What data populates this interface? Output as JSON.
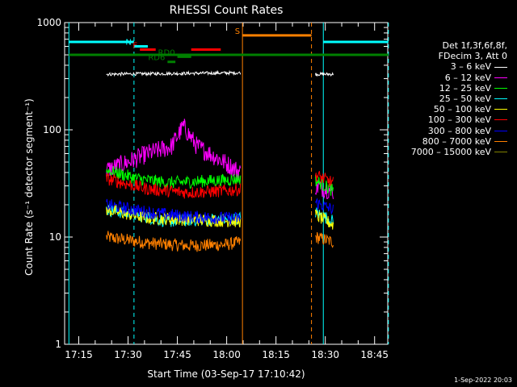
{
  "chart_data": {
    "type": "line",
    "title": "RHESSI Count Rates",
    "xlabel": "Start Time (03-Sep-17 17:10:42)",
    "ylabel": "Count Rate (s⁻¹ detector segment⁻¹)",
    "ylog": true,
    "ylim": [
      1,
      1000
    ],
    "xlim": [
      "17:10:42",
      "18:49:00"
    ],
    "x_ticks": [
      "17:15",
      "17:30",
      "17:45",
      "18:00",
      "18:15",
      "18:30",
      "18:45"
    ],
    "y_ticks": [
      "1",
      "10",
      "100",
      "1000"
    ],
    "legend_title": [
      "Det 1f,3f,6f,8f,",
      "FDecim 3, Att 0"
    ],
    "series": [
      {
        "name": "3 – 6 keV",
        "color": "#ffffff",
        "segments": [
          [
            [
              17.39,
              330
            ],
            [
              18.07,
              340
            ]
          ],
          [
            [
              18.45,
              330
            ],
            [
              18.54,
              330
            ]
          ]
        ]
      },
      {
        "name": "6 – 12 keV",
        "color": "#ff00ff",
        "segments": [
          [
            [
              17.39,
              42
            ],
            [
              17.5,
              50
            ],
            [
              17.6,
              60
            ],
            [
              17.72,
              70
            ],
            [
              17.78,
              108
            ],
            [
              17.85,
              70
            ],
            [
              17.95,
              55
            ],
            [
              18.07,
              40
            ]
          ],
          [
            [
              18.45,
              30
            ],
            [
              18.54,
              27
            ]
          ]
        ]
      },
      {
        "name": "12 – 25 keV",
        "color": "#00ff00",
        "segments": [
          [
            [
              17.39,
              42
            ],
            [
              17.55,
              35
            ],
            [
              17.7,
              32
            ],
            [
              17.85,
              33
            ],
            [
              18.0,
              34
            ],
            [
              18.07,
              35
            ]
          ],
          [
            [
              18.45,
              34
            ],
            [
              18.54,
              27
            ]
          ]
        ]
      },
      {
        "name": "25 – 50 keV",
        "color": "#00ffff",
        "segments": [
          [
            [
              17.39,
              18
            ],
            [
              17.55,
              16
            ],
            [
              17.7,
              14
            ],
            [
              17.85,
              14.5
            ],
            [
              18.0,
              14.5
            ],
            [
              18.07,
              15
            ]
          ],
          [
            [
              18.45,
              17
            ],
            [
              18.54,
              14
            ]
          ]
        ]
      },
      {
        "name": "50 – 100 keV",
        "color": "#ffff00",
        "segments": [
          [
            [
              17.39,
              18
            ],
            [
              17.6,
              15
            ],
            [
              18.07,
              14
            ]
          ],
          [
            [
              18.45,
              16
            ],
            [
              18.54,
              13
            ]
          ]
        ]
      },
      {
        "name": "100 – 300 keV",
        "color": "#ff0000",
        "segments": [
          [
            [
              17.39,
              35
            ],
            [
              17.6,
              28
            ],
            [
              17.8,
              26
            ],
            [
              18.0,
              27
            ],
            [
              18.07,
              28
            ]
          ],
          [
            [
              18.45,
              38
            ],
            [
              18.54,
              32
            ]
          ]
        ]
      },
      {
        "name": "300 – 800 keV",
        "color": "#0000ff",
        "segments": [
          [
            [
              17.39,
              20
            ],
            [
              17.6,
              17
            ],
            [
              17.8,
              15.5
            ],
            [
              18.0,
              15
            ],
            [
              18.07,
              15
            ]
          ],
          [
            [
              18.45,
              21
            ],
            [
              18.54,
              18
            ]
          ]
        ]
      },
      {
        "name": "800 – 7000 keV",
        "color": "#ff8000",
        "segments": [
          [
            [
              17.39,
              10
            ],
            [
              17.6,
              8.8
            ],
            [
              17.8,
              8.3
            ],
            [
              18.0,
              8.5
            ],
            [
              18.07,
              9
            ]
          ],
          [
            [
              18.45,
              10
            ],
            [
              18.54,
              9
            ]
          ]
        ]
      },
      {
        "name": "7000 – 15000 keV",
        "color": "#808000",
        "segments": []
      }
    ],
    "vlines": [
      {
        "t": 17.2,
        "color": "#00ffff",
        "style": "solid"
      },
      {
        "t": 17.53,
        "color": "#00ffff",
        "style": "dash"
      },
      {
        "t": 18.08,
        "color": "#ff8000",
        "style": "solid"
      },
      {
        "t": 18.43,
        "color": "#ff8000",
        "style": "dash"
      },
      {
        "t": 18.49,
        "color": "#00ffff",
        "style": "solid"
      },
      {
        "t": 18.82,
        "color": "#00ffff",
        "style": "dash"
      }
    ],
    "flag_bars": [
      {
        "label": "",
        "color": "#00ffff",
        "y": 660,
        "from": 17.2,
        "to": 17.53
      },
      {
        "label": "N",
        "color": "#00ffff",
        "y": 600,
        "from": 17.53,
        "to": 17.6
      },
      {
        "label": "",
        "color": "#00ffff",
        "y": 660,
        "from": 18.49,
        "to": 18.82
      },
      {
        "label": "S",
        "color": "#ff8000",
        "y": 760,
        "from": 18.08,
        "to": 18.43
      },
      {
        "label": "F",
        "color": "#ff0000",
        "y": 560,
        "from": 17.56,
        "to": 17.64
      },
      {
        "label": "",
        "color": "#ff0000",
        "y": 560,
        "from": 17.82,
        "to": 17.97
      },
      {
        "label": "RD6",
        "color": "#008000",
        "y": 430,
        "from": 17.7,
        "to": 17.74
      },
      {
        "label": "RD0",
        "color": "#008000",
        "y": 480,
        "from": 17.75,
        "to": 17.82
      },
      {
        "label": "",
        "color": "#008000",
        "y": 500,
        "from": 17.2,
        "to": 18.82
      }
    ],
    "grid": false,
    "legend_position": "right"
  },
  "timestamp": "1-Sep-2022 20:03"
}
